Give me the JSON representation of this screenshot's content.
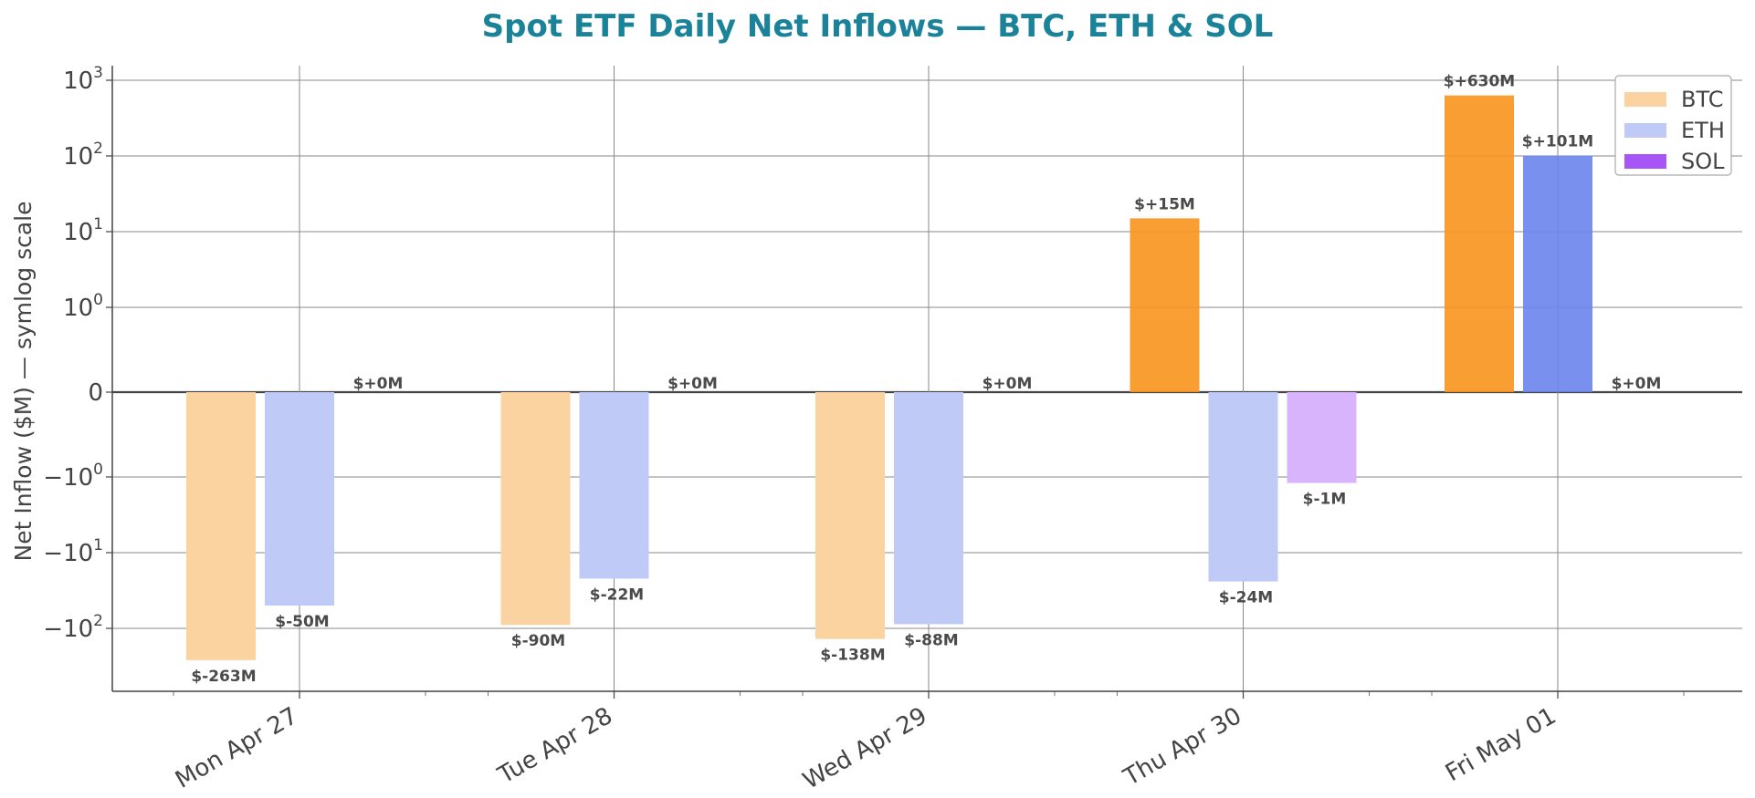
{
  "chart_data": {
    "type": "bar",
    "title": "Spot ETF Daily Net Inflows — BTC, ETH & SOL",
    "ylabel": "Net Inflow ($M) — symlog scale",
    "xlabel": "",
    "yscale": "symlog",
    "ylim": [
      -600,
      1600
    ],
    "y_ticks": [
      {
        "value": 1000,
        "base": "10",
        "exp": "3"
      },
      {
        "value": 100,
        "base": "10",
        "exp": "2"
      },
      {
        "value": 10,
        "base": "10",
        "exp": "1"
      },
      {
        "value": 1,
        "base": "10",
        "exp": "0"
      },
      {
        "value": 0,
        "base": "0",
        "exp": ""
      },
      {
        "value": -1,
        "base": "−10",
        "exp": "0"
      },
      {
        "value": -10,
        "base": "−10",
        "exp": "1"
      },
      {
        "value": -100,
        "base": "−10",
        "exp": "2"
      }
    ],
    "categories": [
      "Mon Apr 27",
      "Tue Apr 28",
      "Wed Apr 29",
      "Thu Apr 30",
      "Fri May 01"
    ],
    "series": [
      {
        "name": "BTC",
        "color": "#f7941d",
        "light_color": "#fbd3a0",
        "values": [
          -263,
          -90,
          -138,
          15,
          630
        ],
        "labels": [
          "$-263M",
          "$-90M",
          "$-138M",
          "$+15M",
          "$+630M"
        ]
      },
      {
        "name": "ETH",
        "color": "#6b84ec",
        "light_color": "#c0caf7",
        "values": [
          -50,
          -22,
          -88,
          -24,
          101
        ],
        "labels": [
          "$-50M",
          "$-22M",
          "$-88M",
          "$-24M",
          "$+101M"
        ]
      },
      {
        "name": "SOL",
        "color": "#a855f7",
        "light_color": "#d7b4fb",
        "values": [
          0,
          0,
          0,
          -1.2,
          0
        ],
        "labels": [
          "$+0M",
          "$+0M",
          "$+0M",
          "$-1M",
          "$+0M"
        ]
      }
    ],
    "grid": true,
    "legend": "top-right",
    "title_color": "#1a8299"
  }
}
